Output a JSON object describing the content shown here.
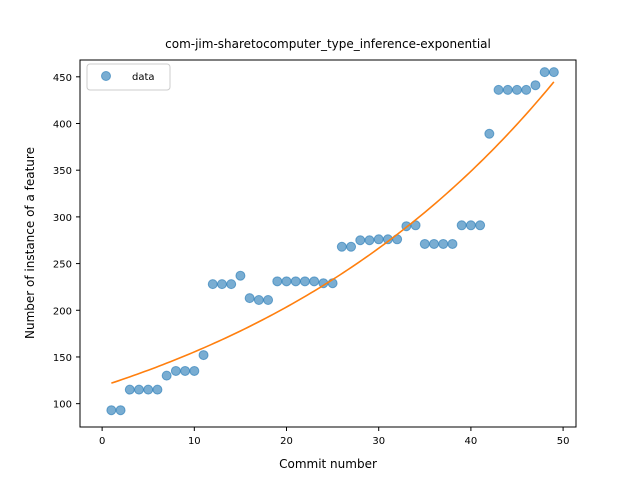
{
  "chart_data": {
    "type": "scatter",
    "title": "com-jim-sharetocomputer_type_inference-exponential",
    "xlabel": "Commit number",
    "ylabel": "Number of instance of a feature",
    "xlim": [
      -2.4,
      51.4
    ],
    "ylim": [
      75,
      468
    ],
    "x_ticks": [
      0,
      10,
      20,
      30,
      40,
      50
    ],
    "y_ticks": [
      100,
      150,
      200,
      250,
      300,
      350,
      400,
      450
    ],
    "grid": false,
    "legend_placement": "top-left",
    "series": [
      {
        "name": "data",
        "kind": "scatter",
        "color": "#1f77b4",
        "x": [
          1,
          2,
          3,
          4,
          5,
          6,
          7,
          8,
          9,
          10,
          11,
          12,
          13,
          14,
          15,
          16,
          17,
          18,
          19,
          20,
          21,
          22,
          23,
          24,
          25,
          26,
          27,
          28,
          29,
          30,
          31,
          32,
          33,
          34,
          35,
          36,
          37,
          38,
          39,
          40,
          41,
          42,
          43,
          44,
          45,
          46,
          47,
          48,
          49
        ],
        "y": [
          93,
          93,
          115,
          115,
          115,
          115,
          130,
          135,
          135,
          135,
          152,
          228,
          228,
          228,
          237,
          213,
          211,
          211,
          231,
          231,
          231,
          231,
          231,
          229,
          229,
          268,
          268,
          275,
          275,
          276,
          276,
          276,
          290,
          291,
          271,
          271,
          271,
          271,
          291,
          291,
          291,
          389,
          436,
          436,
          436,
          436,
          441,
          455,
          455
        ]
      },
      {
        "kind": "line",
        "color": "#ff7f0e",
        "model": "exponential",
        "a": 118.7,
        "b": 0.02695
      }
    ]
  }
}
